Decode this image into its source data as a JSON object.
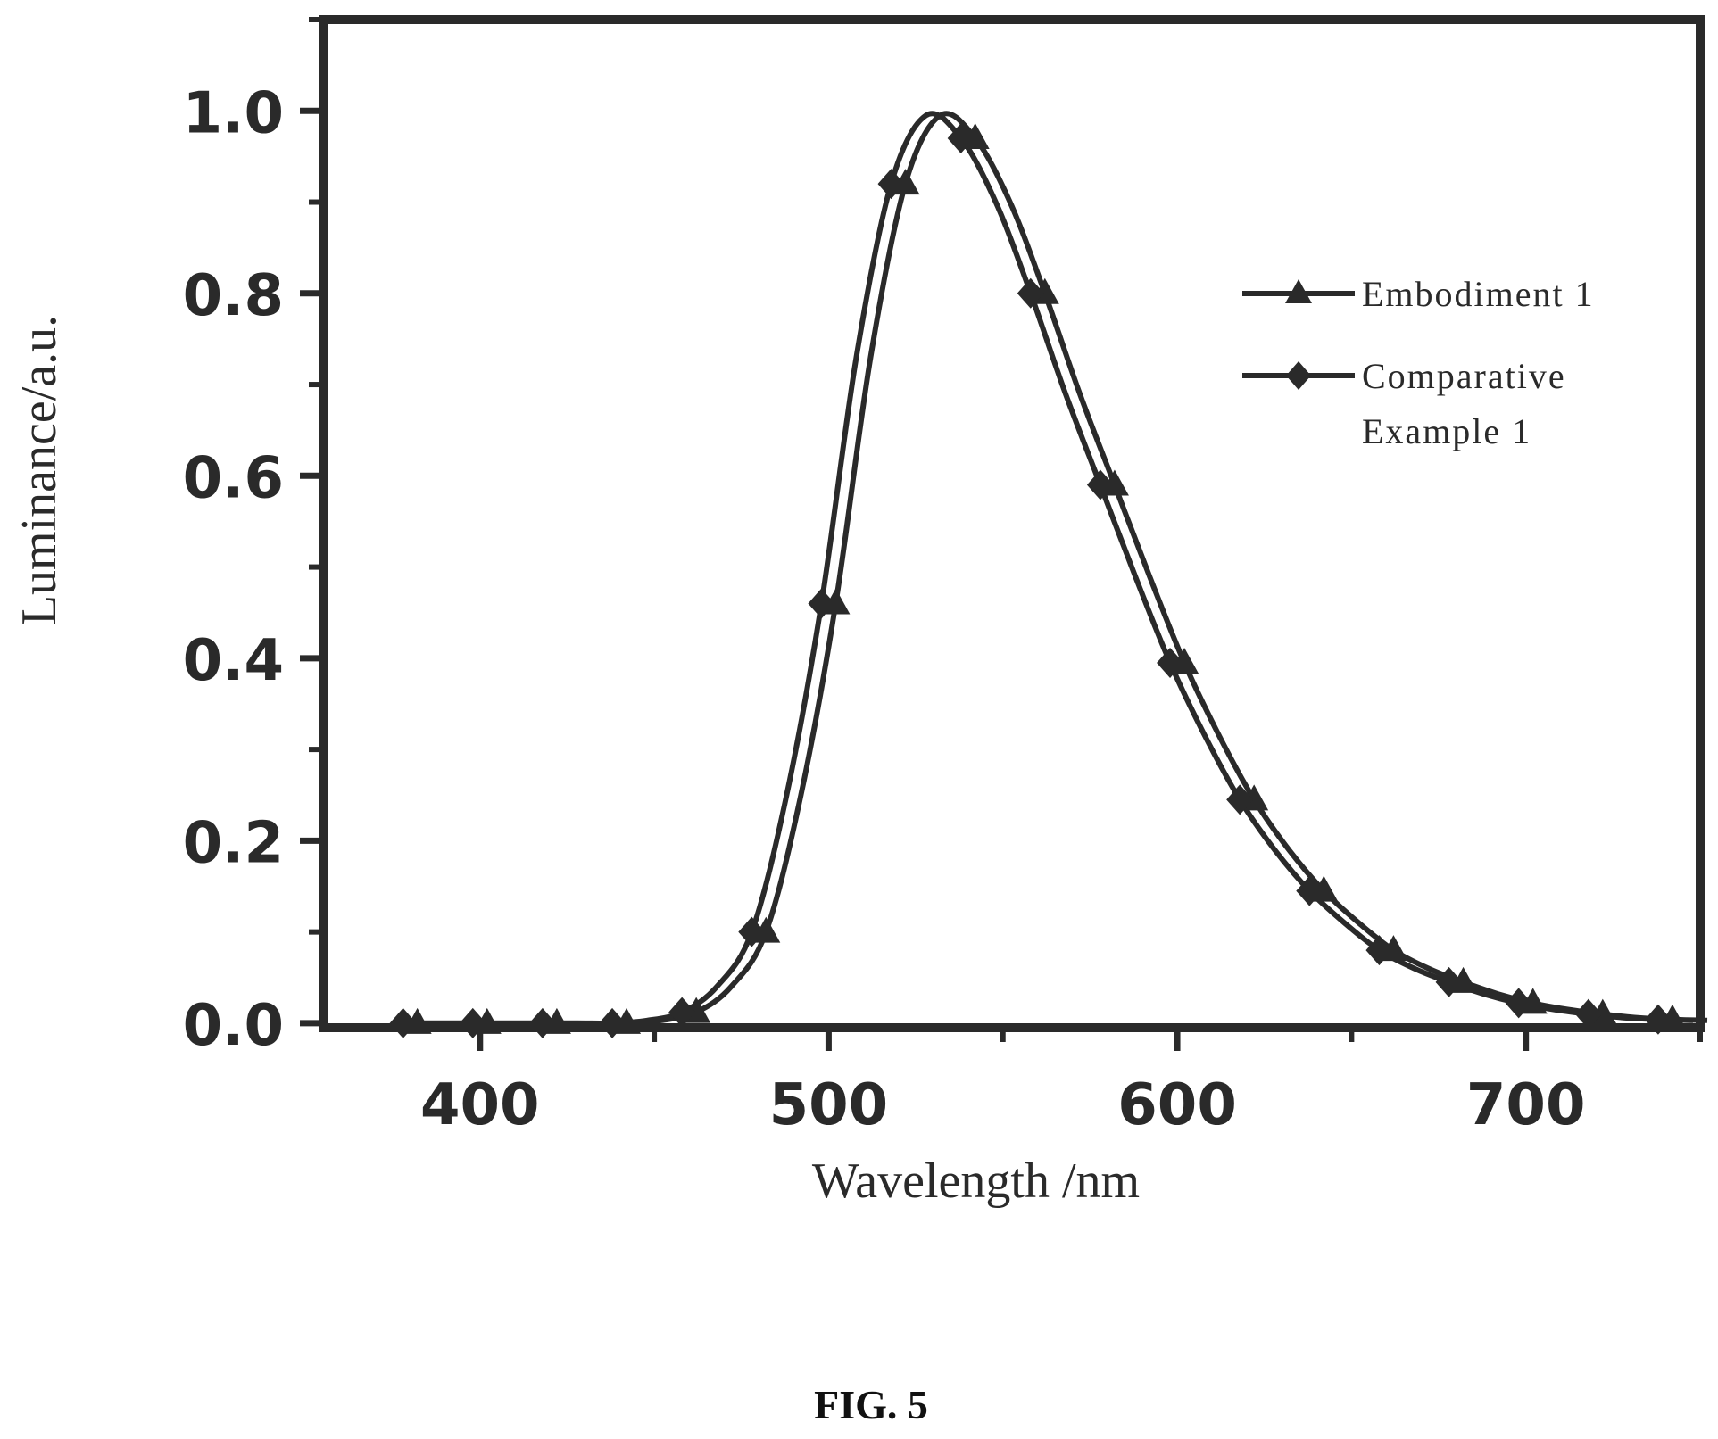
{
  "figure": {
    "caption": "FIG. 5"
  },
  "chart_data": {
    "type": "line",
    "title": "",
    "xlabel": "Wavelength /nm",
    "ylabel": "Luminance/a.u.",
    "xlim": [
      355,
      750
    ],
    "ylim": [
      -0.005,
      1.1
    ],
    "xticks": [
      400,
      500,
      600,
      700
    ],
    "yticks": [
      0.0,
      0.2,
      0.4,
      0.6,
      0.8,
      1.0
    ],
    "xtick_labels": [
      "400",
      "500",
      "600",
      "700"
    ],
    "ytick_labels": [
      "0.0",
      "0.2",
      "0.4",
      "0.6",
      "0.8",
      "1.0"
    ],
    "grid": false,
    "legend_position": "top-right",
    "series": [
      {
        "name": "Embodiment 1",
        "marker": "triangle",
        "color": "#2a2a2a",
        "x": [
          380,
          390,
          400,
          410,
          420,
          430,
          440,
          450,
          460,
          470,
          480,
          490,
          500,
          510,
          520,
          530,
          540,
          550,
          560,
          570,
          580,
          590,
          600,
          610,
          620,
          630,
          640,
          650,
          660,
          670,
          680,
          690,
          700,
          710,
          720,
          730,
          740,
          750
        ],
        "y": [
          0.0,
          0.0,
          0.0,
          0.0,
          0.0,
          0.0,
          0.0,
          0.003,
          0.012,
          0.04,
          0.1,
          0.25,
          0.46,
          0.73,
          0.92,
          0.995,
          0.97,
          0.9,
          0.8,
          0.69,
          0.59,
          0.49,
          0.395,
          0.315,
          0.245,
          0.19,
          0.145,
          0.11,
          0.08,
          0.06,
          0.045,
          0.032,
          0.022,
          0.015,
          0.01,
          0.006,
          0.004,
          0.003
        ],
        "marker_x": [
          380,
          400,
          420,
          440,
          460,
          480,
          500,
          520,
          540,
          560,
          580,
          600,
          620,
          640,
          660,
          680,
          700,
          720,
          740
        ]
      },
      {
        "name": "Comparative Example 1",
        "marker": "diamond",
        "color": "#2a2a2a",
        "x": [
          380,
          390,
          400,
          410,
          420,
          430,
          440,
          450,
          460,
          470,
          480,
          490,
          500,
          510,
          520,
          530,
          540,
          550,
          560,
          570,
          580,
          590,
          600,
          610,
          620,
          630,
          640,
          650,
          660,
          670,
          680,
          690,
          700,
          710,
          720,
          730,
          740,
          750
        ],
        "y": [
          0.0,
          0.0,
          0.0,
          0.0,
          0.0,
          0.0,
          0.0,
          0.003,
          0.012,
          0.04,
          0.1,
          0.25,
          0.46,
          0.73,
          0.92,
          0.995,
          0.97,
          0.9,
          0.8,
          0.69,
          0.59,
          0.49,
          0.395,
          0.315,
          0.245,
          0.19,
          0.145,
          0.11,
          0.08,
          0.06,
          0.045,
          0.032,
          0.022,
          0.015,
          0.01,
          0.006,
          0.004,
          0.003
        ],
        "marker_x": [
          380,
          400,
          420,
          440,
          460,
          480,
          500,
          520,
          540,
          560,
          580,
          600,
          620,
          640,
          660,
          680,
          700,
          720,
          740
        ]
      }
    ],
    "legend": [
      {
        "label_lines": [
          "Embodiment 1"
        ],
        "marker": "triangle"
      },
      {
        "label_lines": [
          "Comparative",
          "Example 1"
        ],
        "marker": "diamond"
      }
    ]
  }
}
